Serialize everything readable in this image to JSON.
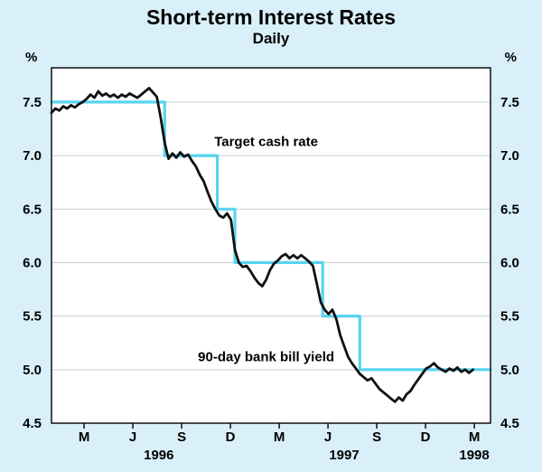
{
  "chart_data": {
    "type": "line",
    "title": "Short-term Interest Rates",
    "subtitle": "Daily",
    "unit_left": "%",
    "unit_right": "%",
    "xlabel": "",
    "ylabel": "%",
    "grid": true,
    "legend_position": "none",
    "xlim": [
      1996.0,
      2.25
    ],
    "x_start": 1996.0,
    "x_span": 2.25,
    "ylim": [
      4.5,
      7.82
    ],
    "y_ticks": [
      4.5,
      5.0,
      5.5,
      6.0,
      6.5,
      7.0,
      7.5
    ],
    "x_ticks": [
      {
        "x": 1996.167,
        "label": "M"
      },
      {
        "x": 1996.417,
        "label": "J"
      },
      {
        "x": 1996.667,
        "label": "S"
      },
      {
        "x": 1996.917,
        "label": "D"
      },
      {
        "x": 1997.167,
        "label": "M"
      },
      {
        "x": 1997.417,
        "label": "J"
      },
      {
        "x": 1997.667,
        "label": "S"
      },
      {
        "x": 1997.917,
        "label": "D"
      },
      {
        "x": 1998.167,
        "label": "M"
      }
    ],
    "year_labels": [
      {
        "x": 1996.55,
        "label": "1996"
      },
      {
        "x": 1997.5,
        "label": "1997"
      },
      {
        "x": 1998.167,
        "label": "1998"
      }
    ],
    "colors": {
      "background": "#d9f0fa",
      "plot_background": "#ffffff",
      "grid": "#c4cdd2",
      "frame": "#000000",
      "target_line": "#58d4f0",
      "bill_line": "#111111"
    },
    "annotations": [
      {
        "text": "Target cash rate",
        "x": 1997.1,
        "y": 7.13
      },
      {
        "text": "90-day bank bill yield",
        "x": 1997.1,
        "y": 5.12
      }
    ],
    "series": [
      {
        "name": "Target cash rate",
        "color": "#58d4f0",
        "width": 3.2,
        "points": [
          [
            1996.0,
            7.5
          ],
          [
            1996.58,
            7.5
          ],
          [
            1996.58,
            7.0
          ],
          [
            1996.85,
            7.0
          ],
          [
            1996.85,
            6.5
          ],
          [
            1996.94,
            6.5
          ],
          [
            1996.94,
            6.0
          ],
          [
            1997.39,
            6.0
          ],
          [
            1997.39,
            5.5
          ],
          [
            1997.58,
            5.5
          ],
          [
            1997.58,
            5.0
          ],
          [
            1998.25,
            5.0
          ]
        ]
      },
      {
        "name": "90-day bank bill yield",
        "color": "#111111",
        "width": 2.8,
        "points": [
          [
            1996.0,
            7.4
          ],
          [
            1996.02,
            7.44
          ],
          [
            1996.04,
            7.42
          ],
          [
            1996.06,
            7.46
          ],
          [
            1996.08,
            7.44
          ],
          [
            1996.1,
            7.47
          ],
          [
            1996.12,
            7.45
          ],
          [
            1996.14,
            7.48
          ],
          [
            1996.16,
            7.5
          ],
          [
            1996.18,
            7.53
          ],
          [
            1996.2,
            7.57
          ],
          [
            1996.22,
            7.54
          ],
          [
            1996.24,
            7.6
          ],
          [
            1996.26,
            7.56
          ],
          [
            1996.28,
            7.58
          ],
          [
            1996.3,
            7.55
          ],
          [
            1996.32,
            7.57
          ],
          [
            1996.34,
            7.54
          ],
          [
            1996.36,
            7.57
          ],
          [
            1996.38,
            7.55
          ],
          [
            1996.4,
            7.58
          ],
          [
            1996.42,
            7.56
          ],
          [
            1996.44,
            7.54
          ],
          [
            1996.46,
            7.57
          ],
          [
            1996.48,
            7.6
          ],
          [
            1996.5,
            7.63
          ],
          [
            1996.52,
            7.59
          ],
          [
            1996.54,
            7.55
          ],
          [
            1996.56,
            7.35
          ],
          [
            1996.58,
            7.12
          ],
          [
            1996.6,
            6.97
          ],
          [
            1996.62,
            7.02
          ],
          [
            1996.64,
            6.98
          ],
          [
            1996.66,
            7.03
          ],
          [
            1996.68,
            6.99
          ],
          [
            1996.7,
            7.01
          ],
          [
            1996.72,
            6.95
          ],
          [
            1996.74,
            6.9
          ],
          [
            1996.76,
            6.82
          ],
          [
            1996.78,
            6.76
          ],
          [
            1996.8,
            6.66
          ],
          [
            1996.82,
            6.57
          ],
          [
            1996.84,
            6.5
          ],
          [
            1996.86,
            6.44
          ],
          [
            1996.88,
            6.42
          ],
          [
            1996.9,
            6.46
          ],
          [
            1996.92,
            6.4
          ],
          [
            1996.94,
            6.12
          ],
          [
            1996.96,
            6.0
          ],
          [
            1996.98,
            5.96
          ],
          [
            1997.0,
            5.97
          ],
          [
            1997.02,
            5.92
          ],
          [
            1997.04,
            5.86
          ],
          [
            1997.06,
            5.81
          ],
          [
            1997.08,
            5.78
          ],
          [
            1997.1,
            5.84
          ],
          [
            1997.12,
            5.93
          ],
          [
            1997.14,
            5.99
          ],
          [
            1997.16,
            6.02
          ],
          [
            1997.18,
            6.06
          ],
          [
            1997.2,
            6.08
          ],
          [
            1997.22,
            6.04
          ],
          [
            1997.24,
            6.07
          ],
          [
            1997.26,
            6.04
          ],
          [
            1997.28,
            6.07
          ],
          [
            1997.3,
            6.04
          ],
          [
            1997.32,
            6.01
          ],
          [
            1997.34,
            5.97
          ],
          [
            1997.36,
            5.8
          ],
          [
            1997.38,
            5.63
          ],
          [
            1997.4,
            5.56
          ],
          [
            1997.42,
            5.52
          ],
          [
            1997.44,
            5.56
          ],
          [
            1997.46,
            5.47
          ],
          [
            1997.48,
            5.32
          ],
          [
            1997.5,
            5.22
          ],
          [
            1997.52,
            5.12
          ],
          [
            1997.54,
            5.06
          ],
          [
            1997.56,
            5.01
          ],
          [
            1997.58,
            4.96
          ],
          [
            1997.6,
            4.93
          ],
          [
            1997.62,
            4.9
          ],
          [
            1997.64,
            4.92
          ],
          [
            1997.66,
            4.87
          ],
          [
            1997.68,
            4.82
          ],
          [
            1997.7,
            4.79
          ],
          [
            1997.72,
            4.76
          ],
          [
            1997.74,
            4.73
          ],
          [
            1997.76,
            4.7
          ],
          [
            1997.78,
            4.74
          ],
          [
            1997.8,
            4.71
          ],
          [
            1997.82,
            4.77
          ],
          [
            1997.84,
            4.8
          ],
          [
            1997.86,
            4.86
          ],
          [
            1997.88,
            4.91
          ],
          [
            1997.9,
            4.96
          ],
          [
            1997.92,
            5.01
          ],
          [
            1997.94,
            5.03
          ],
          [
            1997.96,
            5.06
          ],
          [
            1997.98,
            5.02
          ],
          [
            1998.0,
            5.0
          ],
          [
            1998.02,
            4.98
          ],
          [
            1998.04,
            5.01
          ],
          [
            1998.06,
            4.99
          ],
          [
            1998.08,
            5.02
          ],
          [
            1998.1,
            4.98
          ],
          [
            1998.12,
            5.0
          ],
          [
            1998.14,
            4.97
          ],
          [
            1998.16,
            5.0
          ]
        ]
      }
    ]
  }
}
